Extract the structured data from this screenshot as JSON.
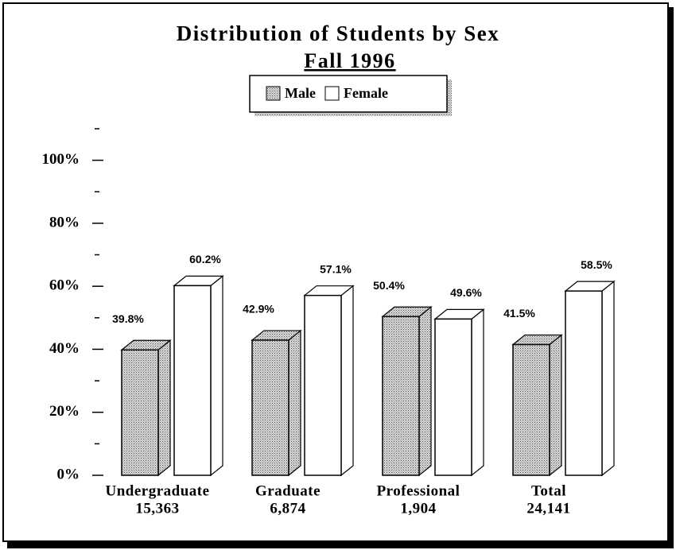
{
  "chart_data": {
    "type": "bar3d",
    "title": "Distribution of Students by Sex",
    "subtitle": "Fall 1996",
    "categories": [
      "Undergraduate",
      "Graduate",
      "Professional",
      "Total"
    ],
    "category_totals": [
      {
        "value": 15363,
        "label": "15,363"
      },
      {
        "value": 6874,
        "label": "6,874"
      },
      {
        "value": 1904,
        "label": "1,904"
      },
      {
        "value": 24141,
        "label": "24,141"
      }
    ],
    "series": [
      {
        "name": "Male",
        "color": "#b8b8b8",
        "values": [
          39.8,
          42.9,
          50.4,
          41.5
        ],
        "value_labels": [
          "39.8%",
          "42.9%",
          "50.4%",
          "41.5%"
        ]
      },
      {
        "name": "Female",
        "color": "#ffffff",
        "values": [
          60.2,
          57.1,
          49.6,
          58.5
        ],
        "value_labels": [
          "60.2%",
          "57.1%",
          "49.6%",
          "58.5%"
        ]
      }
    ],
    "ylim": [
      0,
      110
    ],
    "yticks": [
      {
        "value": 0,
        "label": "0%"
      },
      {
        "value": 20,
        "label": "20%"
      },
      {
        "value": 40,
        "label": "40%"
      },
      {
        "value": 60,
        "label": "60%"
      },
      {
        "value": 80,
        "label": "80%"
      },
      {
        "value": 100,
        "label": "100%"
      }
    ],
    "yminor_ticks": [
      10,
      30,
      50,
      70,
      90,
      110
    ],
    "legend": "top"
  }
}
